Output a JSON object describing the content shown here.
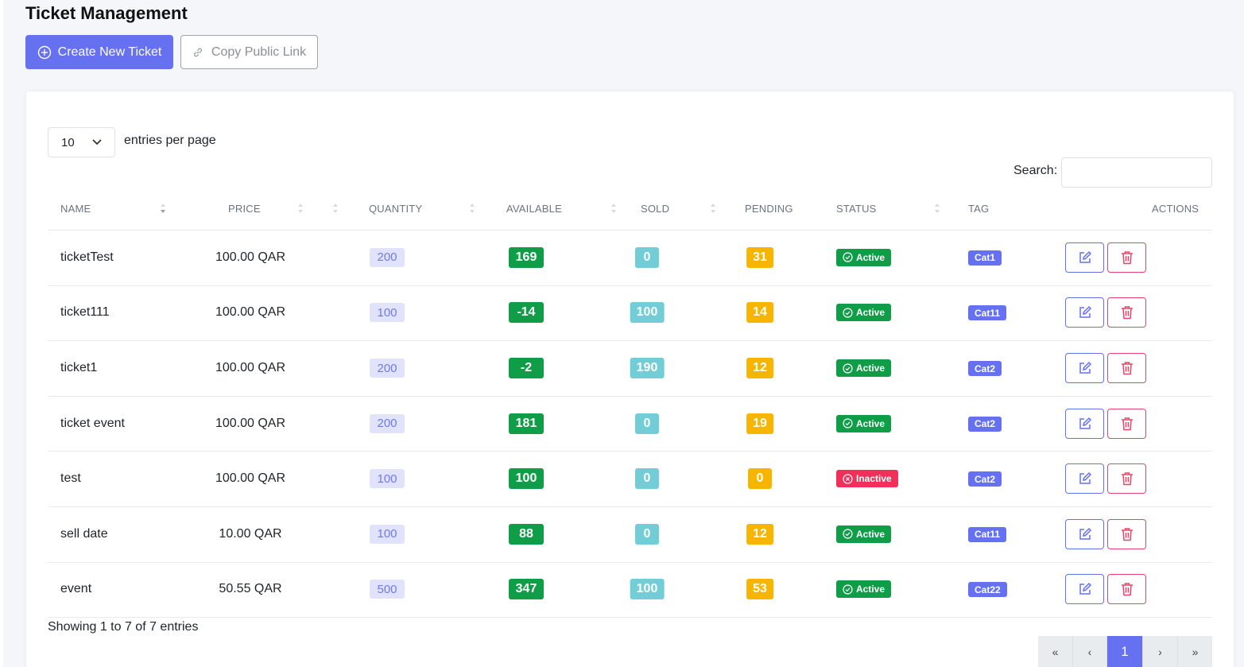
{
  "page": {
    "title": "Ticket Management"
  },
  "toolbar": {
    "create_label": "Create New Ticket",
    "copy_label": "Copy Public Link"
  },
  "table_controls": {
    "per_page_value": "10",
    "per_page_label": "entries per page",
    "search_label": "Search:",
    "search_value": ""
  },
  "columns": [
    "NAME",
    "PRICE",
    "QUANTITY",
    "AVAILABLE",
    "SOLD",
    "PENDING",
    "STATUS",
    "TAG",
    "ACTIONS"
  ],
  "rows": [
    {
      "name": "ticketTest",
      "price": "100.00 QAR",
      "quantity": "200",
      "available": "169",
      "sold": "0",
      "pending": "31",
      "status": "Active",
      "tag": "Cat1"
    },
    {
      "name": "ticket111",
      "price": "100.00 QAR",
      "quantity": "100",
      "available": "-14",
      "sold": "100",
      "pending": "14",
      "status": "Active",
      "tag": "Cat11"
    },
    {
      "name": "ticket1",
      "price": "100.00 QAR",
      "quantity": "200",
      "available": "-2",
      "sold": "190",
      "pending": "12",
      "status": "Active",
      "tag": "Cat2"
    },
    {
      "name": "ticket event",
      "price": "100.00 QAR",
      "quantity": "200",
      "available": "181",
      "sold": "0",
      "pending": "19",
      "status": "Active",
      "tag": "Cat2"
    },
    {
      "name": "test",
      "price": "100.00 QAR",
      "quantity": "100",
      "available": "100",
      "sold": "0",
      "pending": "0",
      "status": "Inactive",
      "tag": "Cat2"
    },
    {
      "name": "sell date",
      "price": "10.00 QAR",
      "quantity": "100",
      "available": "88",
      "sold": "0",
      "pending": "12",
      "status": "Active",
      "tag": "Cat11"
    },
    {
      "name": "event",
      "price": "50.55 QAR",
      "quantity": "500",
      "available": "347",
      "sold": "100",
      "pending": "53",
      "status": "Active",
      "tag": "Cat22"
    }
  ],
  "footer": {
    "info": "Showing 1 to 7 of 7 entries"
  },
  "pagination": {
    "first": "«",
    "prev": "‹",
    "current": "1",
    "next": "›",
    "last": "»"
  },
  "colors": {
    "accent": "#6571f0",
    "available": "#0f9d48",
    "sold": "#72cdd6",
    "pending": "#f7b500",
    "inactive": "#f0305a",
    "delete": "#e8456a"
  },
  "icons": {
    "create": "plus-circle-icon",
    "copy": "link-icon",
    "edit": "edit-icon",
    "delete": "trash-icon",
    "active": "check-circle-icon",
    "inactive": "x-circle-icon",
    "select": "chevron-down-icon",
    "sort": "sort-icon"
  }
}
